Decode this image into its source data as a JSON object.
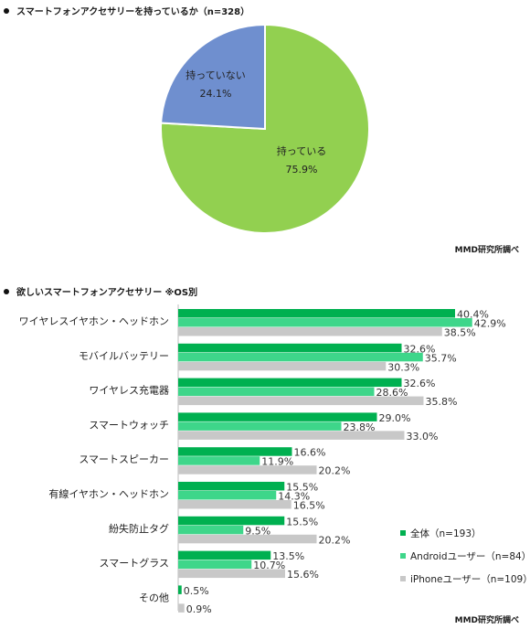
{
  "charts": {
    "pie": {
      "title": "スマートフォンアクセサリーを持っているか（n=328）",
      "source": "MMD研究所調べ"
    },
    "bar": {
      "title": "欲しいスマートフォンアクセサリー ※OS別",
      "source": "MMD研究所調べ"
    }
  },
  "chart_data": [
    {
      "type": "pie",
      "title": "スマートフォンアクセサリーを持っているか（n=328）",
      "slices": [
        {
          "label": "持っている",
          "value": 75.9,
          "display": "75.9%",
          "color": "#92d050"
        },
        {
          "label": "持っていない",
          "value": 24.1,
          "display": "24.1%",
          "color": "#6f8fcf"
        }
      ]
    },
    {
      "type": "bar",
      "orientation": "horizontal",
      "title": "欲しいスマートフォンアクセサリー ※OS別",
      "categories": [
        "ワイヤレスイヤホン・ヘッドホン",
        "モバイルバッテリー",
        "ワイヤレス充電器",
        "スマートウォッチ",
        "スマートスピーカー",
        "有線イヤホン・ヘッドホン",
        "紛失防止タグ",
        "スマートグラス",
        "その他"
      ],
      "series": [
        {
          "name": "全体（n=193）",
          "color": "#00b050",
          "values": [
            40.4,
            32.6,
            32.6,
            29.0,
            16.6,
            15.5,
            15.5,
            13.5,
            0.5
          ]
        },
        {
          "name": "Androidユーザー（n=84）",
          "color": "#3ed68a",
          "values": [
            42.9,
            35.7,
            28.6,
            23.8,
            11.9,
            14.3,
            9.5,
            10.7,
            null
          ]
        },
        {
          "name": "iPhoneユーザー（n=109）",
          "color": "#c8c8c8",
          "values": [
            38.5,
            30.3,
            35.8,
            33.0,
            20.2,
            16.5,
            20.2,
            15.6,
            0.9
          ]
        }
      ],
      "legend_position": "right"
    }
  ]
}
